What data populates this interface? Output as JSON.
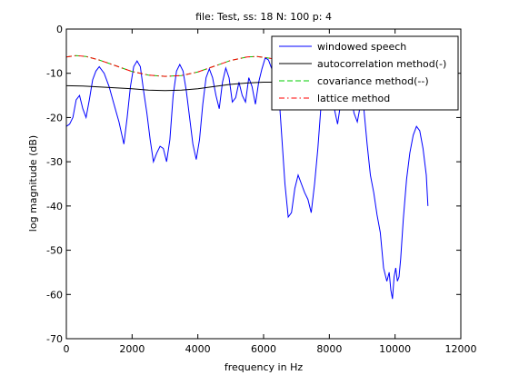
{
  "chart_data": {
    "type": "line",
    "title": "file: Test, ss: 18 N: 100 p: 4",
    "xlabel": "frequency in Hz",
    "ylabel": "log magnitude (dB)",
    "xlim": [
      0,
      12000
    ],
    "ylim": [
      -70,
      0
    ],
    "xticks": [
      0,
      2000,
      4000,
      6000,
      8000,
      10000,
      12000
    ],
    "yticks": [
      0,
      -10,
      -20,
      -30,
      -40,
      -50,
      -60,
      -70
    ],
    "grid": false,
    "legend_position": "top-right",
    "series": [
      {
        "name": "windowed speech",
        "color": "#0000ff",
        "dash": "solid",
        "x": [
          0,
          100,
          200,
          300,
          400,
          500,
          600,
          700,
          800,
          900,
          1000,
          1150,
          1300,
          1450,
          1600,
          1750,
          1850,
          1950,
          2050,
          2150,
          2250,
          2350,
          2450,
          2550,
          2650,
          2750,
          2850,
          2950,
          3050,
          3150,
          3250,
          3350,
          3450,
          3550,
          3650,
          3750,
          3850,
          3950,
          4050,
          4150,
          4250,
          4350,
          4450,
          4550,
          4650,
          4750,
          4850,
          4950,
          5050,
          5150,
          5250,
          5350,
          5450,
          5550,
          5650,
          5750,
          5850,
          5950,
          6050,
          6150,
          6250,
          6350,
          6450,
          6550,
          6650,
          6750,
          6850,
          6950,
          7050,
          7150,
          7250,
          7350,
          7450,
          7550,
          7650,
          7750,
          7850,
          7950,
          8050,
          8150,
          8250,
          8350,
          8450,
          8550,
          8650,
          8750,
          8850,
          8950,
          9050,
          9150,
          9250,
          9350,
          9450,
          9550,
          9650,
          9750,
          9820,
          9870,
          9920,
          9970,
          10020,
          10070,
          10120,
          10170,
          10250,
          10350,
          10450,
          10550,
          10650,
          10750,
          10850,
          10950,
          11000
        ],
        "y": [
          -22,
          -21.5,
          -20,
          -16,
          -15,
          -18,
          -20,
          -16,
          -11.5,
          -9.5,
          -8.5,
          -10,
          -13,
          -17,
          -21,
          -26,
          -20,
          -13,
          -8.5,
          -7.2,
          -8.5,
          -14,
          -19,
          -25,
          -30,
          -28,
          -26.5,
          -27,
          -30,
          -25,
          -15,
          -9.5,
          -8,
          -9.5,
          -14,
          -20,
          -26,
          -29.5,
          -25,
          -17,
          -11,
          -9,
          -11,
          -15,
          -18,
          -12,
          -8.8,
          -11,
          -16.5,
          -15.5,
          -12,
          -15,
          -16.5,
          -11,
          -13,
          -17,
          -12,
          -9,
          -6.5,
          -7,
          -9,
          -8,
          -13,
          -24,
          -35,
          -42.5,
          -41.5,
          -36,
          -33,
          -35,
          -37,
          -38.5,
          -41.5,
          -35,
          -27,
          -17,
          -12,
          -11,
          -14,
          -18,
          -21.5,
          -16.5,
          -13.5,
          -13,
          -14.5,
          -19,
          -21,
          -17,
          -18,
          -26,
          -33,
          -37,
          -42,
          -46,
          -54,
          -57,
          -55,
          -59,
          -61,
          -56,
          -54,
          -57,
          -56,
          -52,
          -43,
          -34,
          -28,
          -24,
          -22,
          -23,
          -27,
          -33,
          -40
        ]
      },
      {
        "name": "autocorrelation method(-)",
        "color": "#000000",
        "dash": "solid",
        "x": [
          0,
          500,
          1000,
          1500,
          2000,
          2500,
          3000,
          3500,
          4000,
          4500,
          5000,
          5500,
          6000,
          6500,
          7000,
          7500,
          8000,
          8500,
          9000
        ],
        "y": [
          -12.8,
          -12.9,
          -13.1,
          -13.3,
          -13.5,
          -13.8,
          -13.9,
          -13.8,
          -13.5,
          -13.0,
          -12.5,
          -12.2,
          -12.0,
          -12.0,
          -12.0,
          -12.1,
          -12.3,
          -12.6,
          -13.0
        ]
      },
      {
        "name": "covariance method(--)",
        "color": "#00cc00",
        "dash": "dashed",
        "x": [
          0,
          300,
          600,
          1000,
          1500,
          2000,
          2500,
          3000,
          3500,
          4000,
          4500,
          5000,
          5500,
          5800,
          6200,
          6600,
          7000,
          7500,
          8000
        ],
        "y": [
          -6.3,
          -6.0,
          -6.2,
          -7.0,
          -8.3,
          -9.6,
          -10.4,
          -10.7,
          -10.5,
          -9.7,
          -8.4,
          -7.1,
          -6.3,
          -6.2,
          -6.6,
          -7.5,
          -8.6,
          -9.8,
          -10.8
        ]
      },
      {
        "name": "lattice method",
        "color": "#ff0000",
        "dash": "dashdot",
        "x": [
          0,
          300,
          600,
          1000,
          1500,
          2000,
          2500,
          3000,
          3500,
          4000,
          4500,
          5000,
          5500,
          5800,
          6200,
          6600,
          7000,
          7500,
          8000
        ],
        "y": [
          -6.3,
          -6.0,
          -6.2,
          -7.0,
          -8.3,
          -9.6,
          -10.4,
          -10.7,
          -10.5,
          -9.7,
          -8.4,
          -7.1,
          -6.3,
          -6.2,
          -6.6,
          -7.5,
          -8.6,
          -9.8,
          -10.8
        ]
      }
    ]
  }
}
